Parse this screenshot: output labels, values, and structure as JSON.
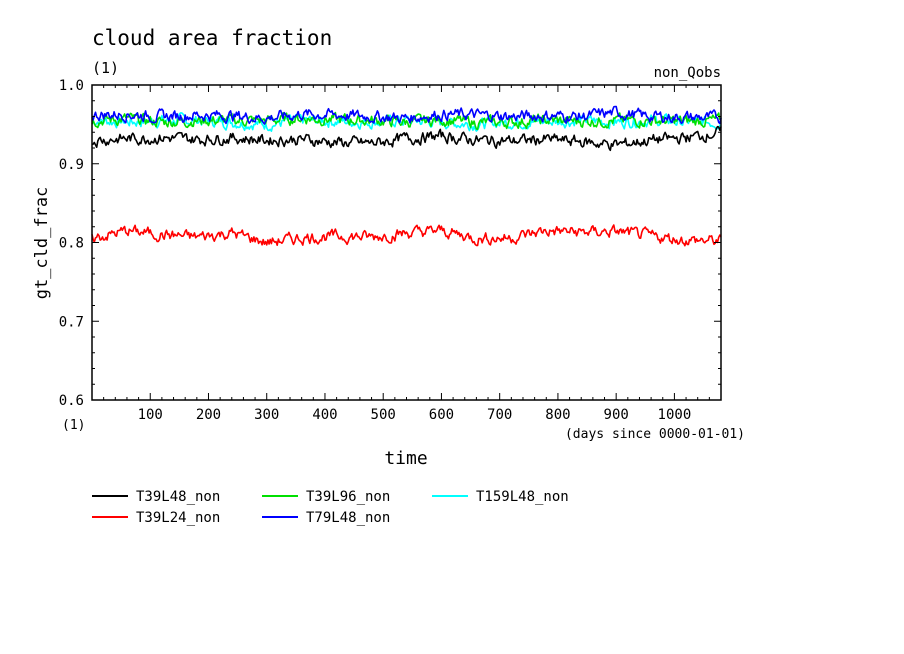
{
  "chart_data": {
    "type": "line",
    "title": "cloud area fraction",
    "title_units": "(1)",
    "subtitle_right": "non_Qobs",
    "xlabel": "time",
    "xlabel_units": "(days since 0000-01-01)",
    "ylabel": "gt_cld_frac",
    "ylabel_units": "(1)",
    "xlim": [
      0,
      1080
    ],
    "ylim": [
      0.6,
      1.0
    ],
    "xticks": [
      100,
      200,
      300,
      400,
      500,
      600,
      700,
      800,
      900,
      1000
    ],
    "xtick_labels": [
      "100",
      "200",
      "300",
      "400",
      "500",
      "600",
      "700",
      "800",
      "900",
      "1000"
    ],
    "yticks": [
      0.6,
      0.7,
      0.8,
      0.9,
      1.0
    ],
    "ytick_labels": [
      "0.6",
      "0.7",
      "0.8",
      "0.9",
      "1.0"
    ],
    "grid": false,
    "legend_position": "bottom",
    "series": [
      {
        "name": "T39L48_non",
        "color": "#000000",
        "x": [
          0,
          60,
          120,
          180,
          240,
          300,
          360,
          420,
          480,
          540,
          600,
          660,
          720,
          780,
          840,
          900,
          960,
          1020,
          1080
        ],
        "y": [
          0.93,
          0.932,
          0.933,
          0.931,
          0.933,
          0.93,
          0.931,
          0.927,
          0.926,
          0.932,
          0.935,
          0.93,
          0.929,
          0.931,
          0.928,
          0.924,
          0.93,
          0.933,
          0.94
        ]
      },
      {
        "name": "T39L24_non",
        "color": "#ff0000",
        "x": [
          0,
          60,
          120,
          180,
          240,
          300,
          360,
          420,
          480,
          540,
          600,
          660,
          720,
          780,
          840,
          900,
          960,
          1020,
          1080
        ],
        "y": [
          0.805,
          0.815,
          0.81,
          0.807,
          0.812,
          0.8,
          0.806,
          0.808,
          0.807,
          0.812,
          0.815,
          0.805,
          0.806,
          0.815,
          0.813,
          0.814,
          0.808,
          0.803,
          0.802
        ]
      },
      {
        "name": "T39L96_non",
        "color": "#00e000",
        "x": [
          0,
          60,
          120,
          180,
          240,
          300,
          360,
          420,
          480,
          540,
          600,
          660,
          720,
          780,
          840,
          900,
          960,
          1020,
          1080
        ],
        "y": [
          0.955,
          0.957,
          0.953,
          0.955,
          0.955,
          0.955,
          0.958,
          0.956,
          0.955,
          0.953,
          0.956,
          0.952,
          0.953,
          0.955,
          0.954,
          0.955,
          0.955,
          0.954,
          0.955
        ]
      },
      {
        "name": "T79L48_non",
        "color": "#0000ff",
        "x": [
          0,
          60,
          120,
          180,
          240,
          300,
          360,
          420,
          480,
          540,
          600,
          660,
          720,
          780,
          840,
          900,
          960,
          1020,
          1080
        ],
        "y": [
          0.962,
          0.963,
          0.96,
          0.962,
          0.961,
          0.958,
          0.963,
          0.962,
          0.96,
          0.958,
          0.963,
          0.962,
          0.96,
          0.961,
          0.96,
          0.965,
          0.96,
          0.959,
          0.958
        ]
      },
      {
        "name": "T159L48_non",
        "color": "#00ffff",
        "x": [
          0,
          60,
          120,
          180,
          240,
          300,
          360,
          420,
          480,
          540,
          600,
          660,
          720,
          780,
          840,
          900,
          960,
          1020,
          1080
        ],
        "y": [
          0.955,
          0.953,
          0.955,
          0.955,
          0.953,
          0.95,
          0.955,
          0.954,
          0.953,
          0.955,
          0.953,
          0.95,
          0.953,
          0.953,
          0.955,
          0.953,
          0.955,
          0.953,
          0.953
        ]
      }
    ]
  }
}
